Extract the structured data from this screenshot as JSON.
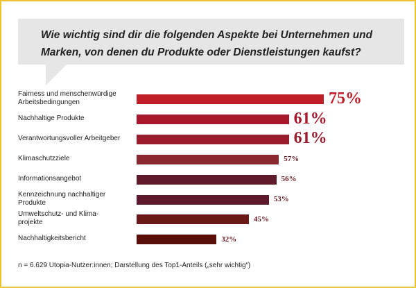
{
  "title": "Wie wichtig sind dir die folgenden Aspekte bei Unternehmen und Marken, von denen du Produkte oder Dienstleistungen kaufst?",
  "footnote": "n = 6.629 Utopia-Nutzer:innen; Darstellung des Top1-Anteils („sehr wichtig“)",
  "chart_data": {
    "type": "bar",
    "orientation": "horizontal",
    "title": "Wie wichtig sind dir die folgenden Aspekte bei Unternehmen und Marken, von denen du Produkte oder Dienstleistungen kaufst?",
    "categories": [
      "Fairness und menschenwürdige Arbeitsbedingungen",
      "Nachhaltige Produkte",
      "Verantwortungsvoller Arbeitgeber",
      "Klimaschutzziele",
      "Informationsangebot",
      "Kennzeichnung nachhaltiger Produkte",
      "Umweltschutz- und Klimaprojekte",
      "Nachhaltigkeitsbericht"
    ],
    "label_lines": [
      [
        "Fairness und menschenwürdige",
        "Arbeitsbedingungen"
      ],
      [
        "Nachhaltige Produkte"
      ],
      [
        "Verantwortungsvoller Arbeitgeber"
      ],
      [
        "Klimaschutzziele"
      ],
      [
        "Informationsangebot"
      ],
      [
        "Kennzeichnung nachhaltiger",
        "Produkte"
      ],
      [
        "Umweltschutz- und Klima-",
        "projekte"
      ],
      [
        "Nachhaltigkeitsbericht"
      ]
    ],
    "values": [
      75,
      61,
      61,
      57,
      56,
      53,
      45,
      32
    ],
    "value_labels": [
      "75%",
      "61%",
      "61%",
      "57%",
      "56%",
      "53%",
      "45%",
      "32%"
    ],
    "colors": [
      "#c01f2a",
      "#a8182c",
      "#9a1d2e",
      "#8a2830",
      "#5f1b29",
      "#5e1a2c",
      "#6a1818",
      "#5a0e0a"
    ],
    "xlim": [
      0,
      100
    ],
    "grid": false,
    "legend": "none"
  },
  "border_color": "#f0c232"
}
